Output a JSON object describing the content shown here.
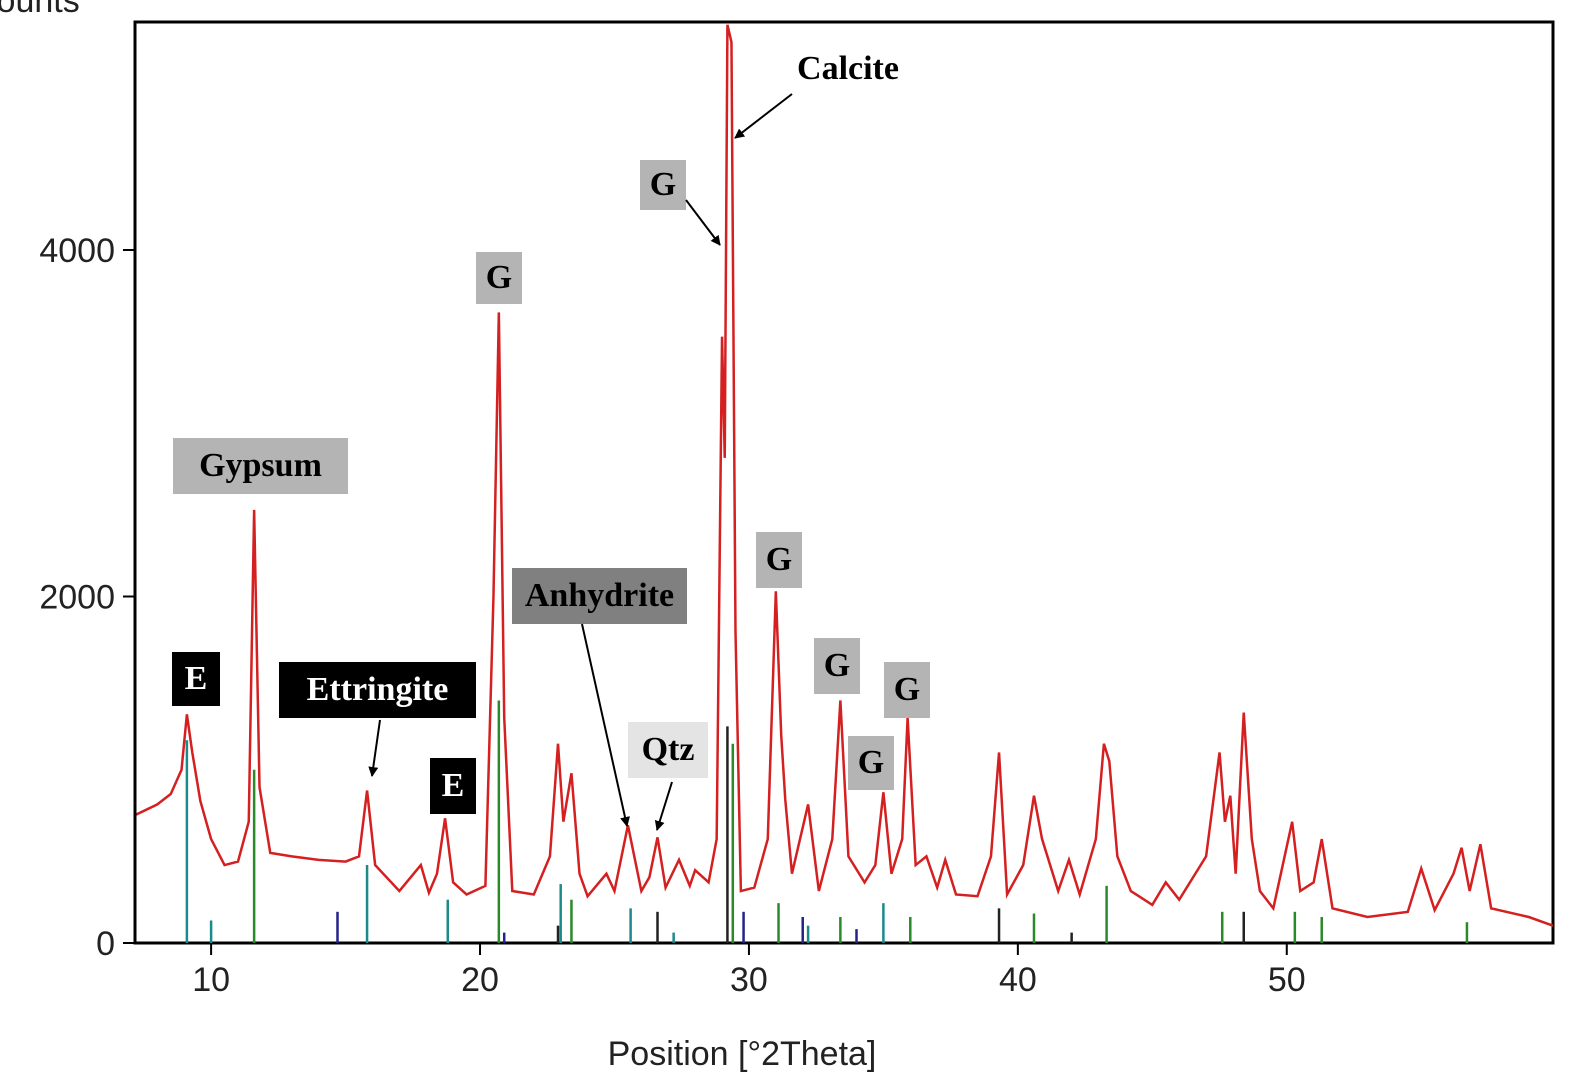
{
  "chart_data": {
    "type": "line",
    "ylabel": "Counts",
    "xlabel": "Position [°2Theta]",
    "xlim": [
      7.17,
      59.9
    ],
    "ylim": [
      0,
      5316
    ],
    "xticks": [
      10,
      20,
      30,
      40,
      50
    ],
    "yticks": [
      0,
      2000,
      4000
    ],
    "series": [
      {
        "color": "#d42020",
        "x": [
          7.2,
          8.0,
          8.5,
          8.9,
          9.1,
          9.3,
          9.6,
          10.0,
          10.5,
          11.0,
          11.4,
          11.6,
          11.8,
          12.2,
          13.0,
          14.0,
          15.0,
          15.5,
          15.8,
          16.1,
          17.0,
          17.8,
          18.1,
          18.4,
          18.7,
          19.0,
          19.5,
          20.2,
          20.5,
          20.7,
          20.9,
          21.2,
          22.0,
          22.6,
          22.9,
          23.1,
          23.4,
          23.7,
          24.0,
          24.7,
          25.0,
          25.5,
          26.0,
          26.3,
          26.6,
          26.9,
          27.4,
          27.8,
          28.0,
          28.5,
          28.8,
          29.0,
          29.1,
          29.2,
          29.35,
          29.5,
          29.7,
          30.2,
          30.7,
          31.0,
          31.2,
          31.35,
          31.6,
          32.2,
          32.6,
          33.1,
          33.4,
          33.7,
          34.3,
          34.7,
          35.0,
          35.3,
          35.7,
          35.9,
          36.2,
          36.6,
          37.0,
          37.3,
          37.7,
          38.5,
          39.0,
          39.3,
          39.6,
          40.2,
          40.6,
          40.9,
          41.5,
          41.9,
          42.3,
          42.9,
          43.2,
          43.4,
          43.7,
          44.2,
          45.0,
          45.5,
          46.0,
          47.0,
          47.5,
          47.7,
          47.9,
          48.1,
          48.4,
          48.7,
          49.0,
          49.5,
          50.2,
          50.5,
          51.0,
          51.3,
          51.7,
          53.0,
          54.5,
          55.0,
          55.5,
          56.2,
          56.5,
          56.8,
          57.2,
          57.6,
          59.0,
          59.9
        ],
        "values": [
          740,
          800,
          860,
          1000,
          1320,
          1100,
          820,
          600,
          450,
          470,
          700,
          2500,
          900,
          520,
          500,
          480,
          470,
          500,
          880,
          450,
          300,
          450,
          290,
          400,
          720,
          350,
          280,
          330,
          2000,
          3640,
          1300,
          300,
          280,
          500,
          1150,
          700,
          980,
          400,
          270,
          400,
          300,
          680,
          300,
          380,
          610,
          320,
          480,
          330,
          420,
          350,
          600,
          3500,
          2800,
          5300,
          5200,
          1800,
          300,
          320,
          600,
          2030,
          1200,
          830,
          400,
          800,
          300,
          600,
          1400,
          500,
          350,
          450,
          870,
          400,
          600,
          1300,
          450,
          500,
          320,
          480,
          280,
          270,
          500,
          1100,
          280,
          450,
          850,
          600,
          300,
          480,
          280,
          600,
          1150,
          1050,
          500,
          300,
          220,
          350,
          250,
          500,
          1100,
          700,
          850,
          400,
          1330,
          600,
          300,
          200,
          700,
          300,
          350,
          600,
          200,
          150,
          180,
          430,
          190,
          400,
          550,
          300,
          570,
          200,
          150,
          100
        ]
      }
    ],
    "reference_lines": [
      {
        "color": "#1b8a8a",
        "x": [
          9.1,
          10.0,
          15.8,
          18.8,
          23.0,
          25.6,
          35.0,
          27.2,
          32.2
        ],
        "values": [
          1170,
          130,
          450,
          250,
          340,
          200,
          230,
          60,
          100
        ]
      },
      {
        "color": "#2a8a2a",
        "x": [
          11.6,
          20.7,
          23.4,
          29.4,
          31.1,
          33.4,
          36.0,
          43.3,
          47.6,
          50.3,
          51.3,
          56.7,
          40.6
        ],
        "values": [
          1000,
          1400,
          250,
          1150,
          230,
          150,
          150,
          330,
          180,
          180,
          150,
          120,
          170
        ]
      },
      {
        "color": "#23238a",
        "x": [
          14.7,
          29.8,
          32.0,
          20.9,
          34.0
        ],
        "values": [
          180,
          180,
          150,
          60,
          80
        ]
      },
      {
        "color": "#222222",
        "x": [
          29.2,
          26.6,
          39.3,
          48.4,
          22.9,
          42.0
        ],
        "values": [
          1250,
          180,
          200,
          180,
          100,
          60
        ]
      }
    ],
    "annotations": [
      {
        "text": "Calcite"
      },
      {
        "text": "G",
        "background": "#b4b4b4",
        "color": "#000000"
      },
      {
        "text": "G",
        "background": "#b4b4b4",
        "color": "#000000"
      },
      {
        "text": "Gypsum",
        "background": "#b4b4b4",
        "color": "#000000"
      },
      {
        "text": "E",
        "background": "#000000",
        "color": "#ffffff"
      },
      {
        "text": "Ettringite",
        "background": "#000000",
        "color": "#ffffff"
      },
      {
        "text": "E",
        "background": "#000000",
        "color": "#ffffff"
      },
      {
        "text": "Anhydrite",
        "background": "#808080",
        "color": "#000000"
      },
      {
        "text": "Qtz",
        "background": "#e4e4e4",
        "color": "#000000"
      },
      {
        "text": "G",
        "background": "#b4b4b4",
        "color": "#000000"
      },
      {
        "text": "G",
        "background": "#b4b4b4",
        "color": "#000000"
      },
      {
        "text": "G",
        "background": "#b4b4b4",
        "color": "#000000"
      },
      {
        "text": "G",
        "background": "#b4b4b4",
        "color": "#000000"
      }
    ]
  }
}
